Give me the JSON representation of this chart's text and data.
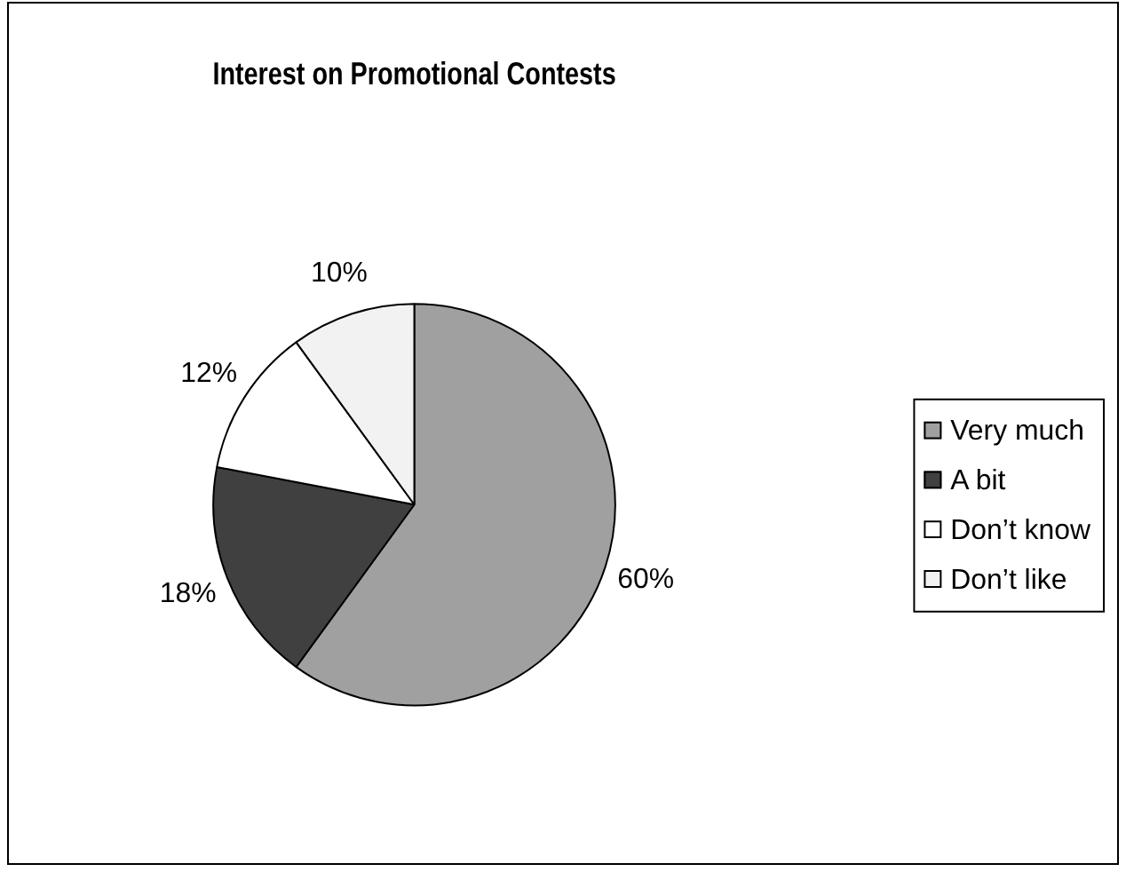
{
  "chart_data": {
    "type": "pie",
    "title": "Interest on Promotional Contests",
    "categories": [
      "Very much",
      "A bit",
      "Don’t know",
      "Don’t like"
    ],
    "values": [
      60,
      18,
      12,
      10
    ],
    "colors": [
      "#a0a0a0",
      "#404040",
      "#ffffff",
      "#f2f2f2"
    ],
    "value_labels": [
      "60%",
      "18%",
      "12%",
      "10%"
    ],
    "legend": "right"
  }
}
